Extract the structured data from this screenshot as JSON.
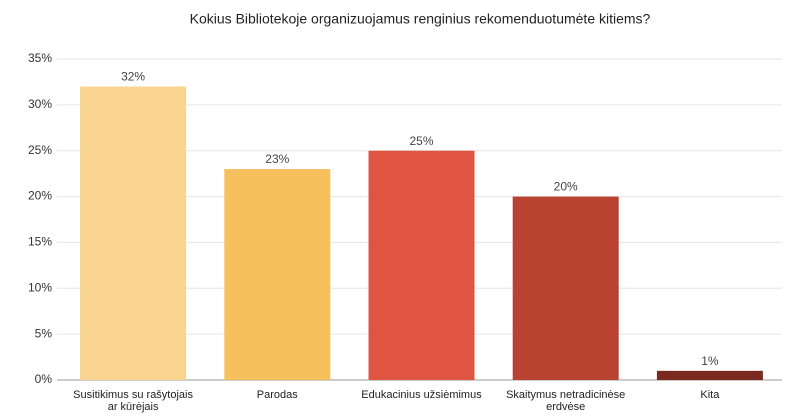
{
  "chart_data": {
    "type": "bar",
    "title": "Kokius Bibliotekoje organizuojamus renginius rekomenduotumėte kitiems?",
    "categories": [
      "Susitikimus su rašytojais ar kūrėjais",
      "Parodas",
      "Edukacinius užsiėmimus",
      "Skaitymus netradicinėse erdvėse",
      "Kita"
    ],
    "values": [
      32,
      23,
      25,
      20,
      1
    ],
    "value_labels": [
      "32%",
      "23%",
      "25%",
      "20%",
      "1%"
    ],
    "colors": [
      "#f8d48f",
      "#f6c15c",
      "#e05541",
      "#b84330",
      "#7a2a1e"
    ],
    "ylim": [
      0,
      35
    ],
    "yticks": [
      {
        "value": 0,
        "label": "0%"
      },
      {
        "value": 5,
        "label": "5%"
      },
      {
        "value": 10,
        "label": "10%"
      },
      {
        "value": 15,
        "label": "15%"
      },
      {
        "value": 20,
        "label": "20%"
      },
      {
        "value": 25,
        "label": "25%"
      },
      {
        "value": 30,
        "label": "30%"
      },
      {
        "value": 35,
        "label": "35%"
      }
    ],
    "grid": true
  }
}
